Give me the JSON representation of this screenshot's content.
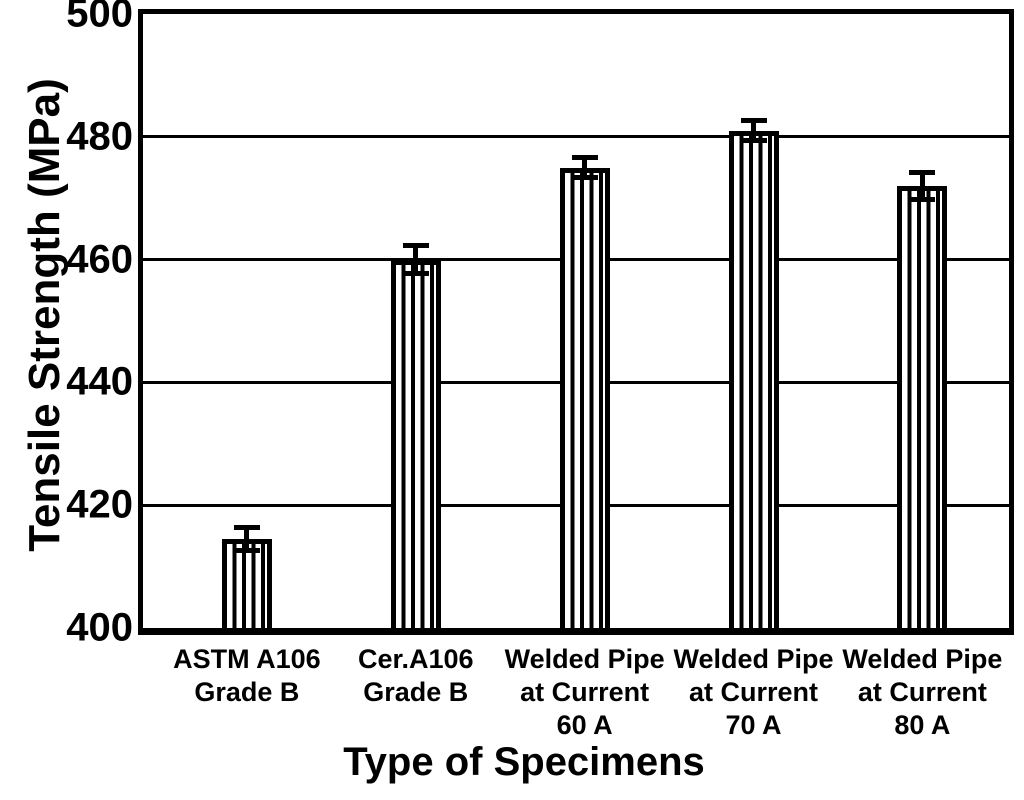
{
  "chart_data": {
    "type": "bar",
    "title": "",
    "xlabel": "Type of Specimens",
    "ylabel": "Tensile Strength (MPa)",
    "categories": [
      "ASTM A106 Grade B",
      "Cer.A106 Grade B",
      "Welded Pipe at Current 60 A",
      "Welded Pipe at Current 70 A",
      "Welded Pipe at Current 80 A"
    ],
    "category_lines": [
      [
        "ASTM A106",
        "Grade B"
      ],
      [
        "Cer.A106",
        "Grade B"
      ],
      [
        "Welded Pipe",
        "at Current",
        "60 A"
      ],
      [
        "Welded Pipe",
        "at Current",
        "70 A"
      ],
      [
        "Welded Pipe",
        "at Current",
        "80 A"
      ]
    ],
    "values": [
      414.5,
      460,
      475,
      481,
      472
    ],
    "errors": [
      1.8,
      2.3,
      1.6,
      1.6,
      2.2
    ],
    "ylim": [
      400,
      500
    ],
    "yticks": [
      400,
      420,
      440,
      460,
      480,
      500
    ],
    "grid": "horizontal",
    "legend": "none",
    "bar_style": {
      "fill": "vertical-hatch",
      "border_color": "#000000",
      "hatch_color": "#000000",
      "background": "#ffffff",
      "error_bars": "symmetric-capped"
    }
  }
}
